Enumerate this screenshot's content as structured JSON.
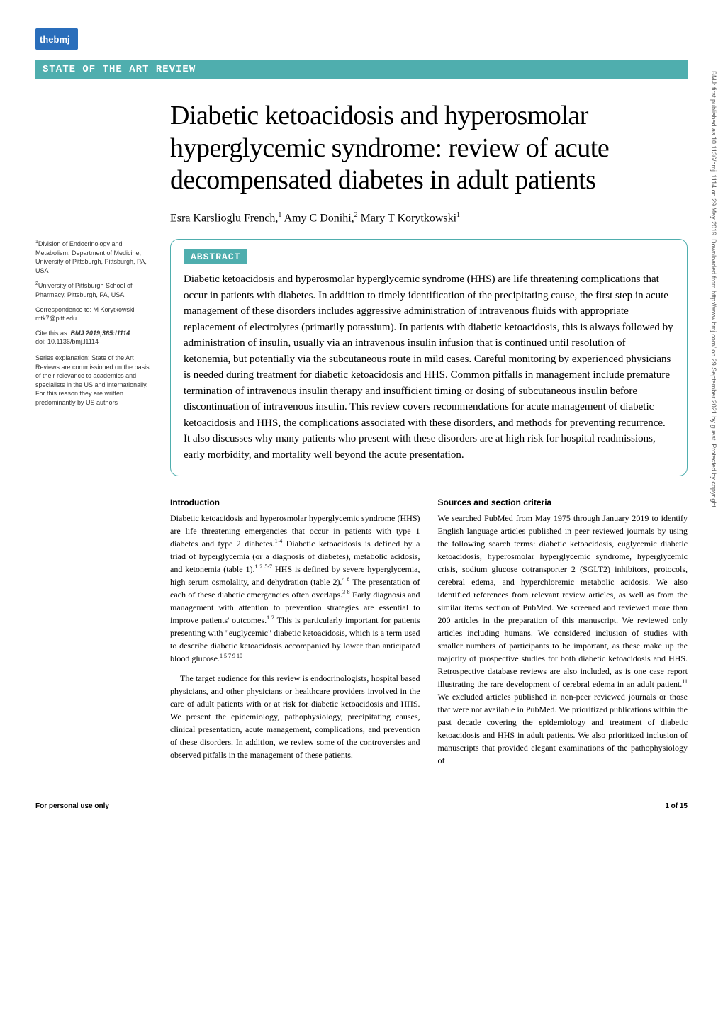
{
  "logo_text": "thebmj",
  "section_banner": "STATE OF THE ART REVIEW",
  "title": "Diabetic ketoacidosis and hyperosmolar hyperglycemic syndrome: review of acute decompensated diabetes in adult patients",
  "authors_html": "Esra Karslioglu French,<sup>1</sup> Amy C Donihi,<sup>2</sup> Mary T Korytkowski<sup>1</sup>",
  "sidebar": {
    "affil1": "<sup>1</sup>Division of Endocrinology and Metabolism, Department of Medicine, University of Pittsburgh, Pittsburgh, PA, USA",
    "affil2": "<sup>2</sup>University of Pittsburgh School of Pharmacy, Pittsburgh, PA, USA",
    "correspondence": "Correspondence to: M Korytkowski mtk7@pitt.edu",
    "cite_label": "Cite this as: ",
    "cite_this": "BMJ 2019;365:l1114",
    "doi": "doi: 10.1136/bmj.l1114",
    "series_label": "Series explanation: ",
    "series_text": "State of the Art Reviews are commissioned on the basis of their relevance to academics and specialists in the US and internationally. For this reason they are written predominantly by US authors"
  },
  "abstract": {
    "label": "ABSTRACT",
    "text": "Diabetic ketoacidosis and hyperosmolar hyperglycemic syndrome (HHS) are life threatening complications that occur in patients with diabetes. In addition to timely identification of the precipitating cause, the first step in acute management of these disorders includes aggressive administration of intravenous fluids with appropriate replacement of electrolytes (primarily potassium). In patients with diabetic ketoacidosis, this is always followed by administration of insulin, usually via an intravenous insulin infusion that is continued until resolution of ketonemia, but potentially via the subcutaneous route in mild cases. Careful monitoring by experienced physicians is needed during treatment for diabetic ketoacidosis and HHS. Common pitfalls in management include premature termination of intravenous insulin therapy and insufficient timing or dosing of subcutaneous insulin before discontinuation of intravenous insulin. This review covers recommendations for acute management of diabetic ketoacidosis and HHS, the complications associated with these disorders, and methods for preventing recurrence. It also discusses why many patients who present with these disorders are at high risk for hospital readmissions, early morbidity, and mortality well beyond the acute presentation."
  },
  "body": {
    "col1": {
      "h1": "Introduction",
      "p1": "Diabetic ketoacidosis and hyperosmolar hyperglycemic syndrome (HHS) are life threatening emergencies that occur in patients with type 1 diabetes and type 2 diabetes.<sup>1-4</sup> Diabetic ketoacidosis is defined by a triad of hyperglycemia (or a diagnosis of diabetes), metabolic acidosis, and ketonemia (table 1).<sup>1 2 5-7</sup> HHS is defined by severe hyperglycemia, high serum osmolality, and dehydration (table 2).<sup>4 8</sup> The presentation of each of these diabetic emergencies often overlaps.<sup>3 8</sup> Early diagnosis and management with attention to prevention strategies are essential to improve patients' outcomes.<sup>1 2</sup> This is particularly important for patients presenting with \"euglycemic\" diabetic ketoacidosis, which is a term used to describe diabetic ketoacidosis accompanied by lower than anticipated blood glucose.<sup>1 5 7 9 10</sup>",
      "p2": "The target audience for this review is endocrinologists, hospital based physicians, and other physicians or healthcare providers involved in the care of adult patients with or at risk for diabetic ketoacidosis and HHS. We present the epidemiology, pathophysiology, precipitating causes, clinical presentation, acute management, complications, and prevention of these disorders. In addition, we review some of the controversies and observed pitfalls in the management of these patients."
    },
    "col2": {
      "h1": "Sources and section criteria",
      "p1": "We searched PubMed from May 1975 through January 2019 to identify English language articles published in peer reviewed journals by using the following search terms: diabetic ketoacidosis, euglycemic diabetic ketoacidosis, hyperosmolar hyperglycemic syndrome, hyperglycemic crisis, sodium glucose cotransporter 2 (SGLT2) inhibitors, protocols, cerebral edema, and hyperchloremic metabolic acidosis. We also identified references from relevant review articles, as well as from the similar items section of PubMed. We screened and reviewed more than 200 articles in the preparation of this manuscript. We reviewed only articles including humans. We considered inclusion of studies with smaller numbers of participants to be important, as these make up the majority of prospective studies for both diabetic ketoacidosis and HHS. Retrospective database reviews are also included, as is one case report illustrating the rare development of cerebral edema in an adult patient.<sup>11</sup> We excluded articles published in non-peer reviewed journals or those that were not available in PubMed. We prioritized publications within the past decade covering the epidemiology and treatment of diabetic ketoacidosis and HHS in adult patients. We also prioritized inclusion of manuscripts that provided elegant examinations of the pathophysiology of"
    }
  },
  "footer": {
    "left": "For personal use only",
    "right": "1 of 15"
  },
  "side_text": "BMJ: first published as 10.1136/bmj.l1114 on 29 May 2019. Downloaded from http://www.bmj.com/ on 29 September 2021 by guest. Protected by copyright.",
  "colors": {
    "teal": "#4faeae",
    "blue": "#2a6ebb"
  }
}
